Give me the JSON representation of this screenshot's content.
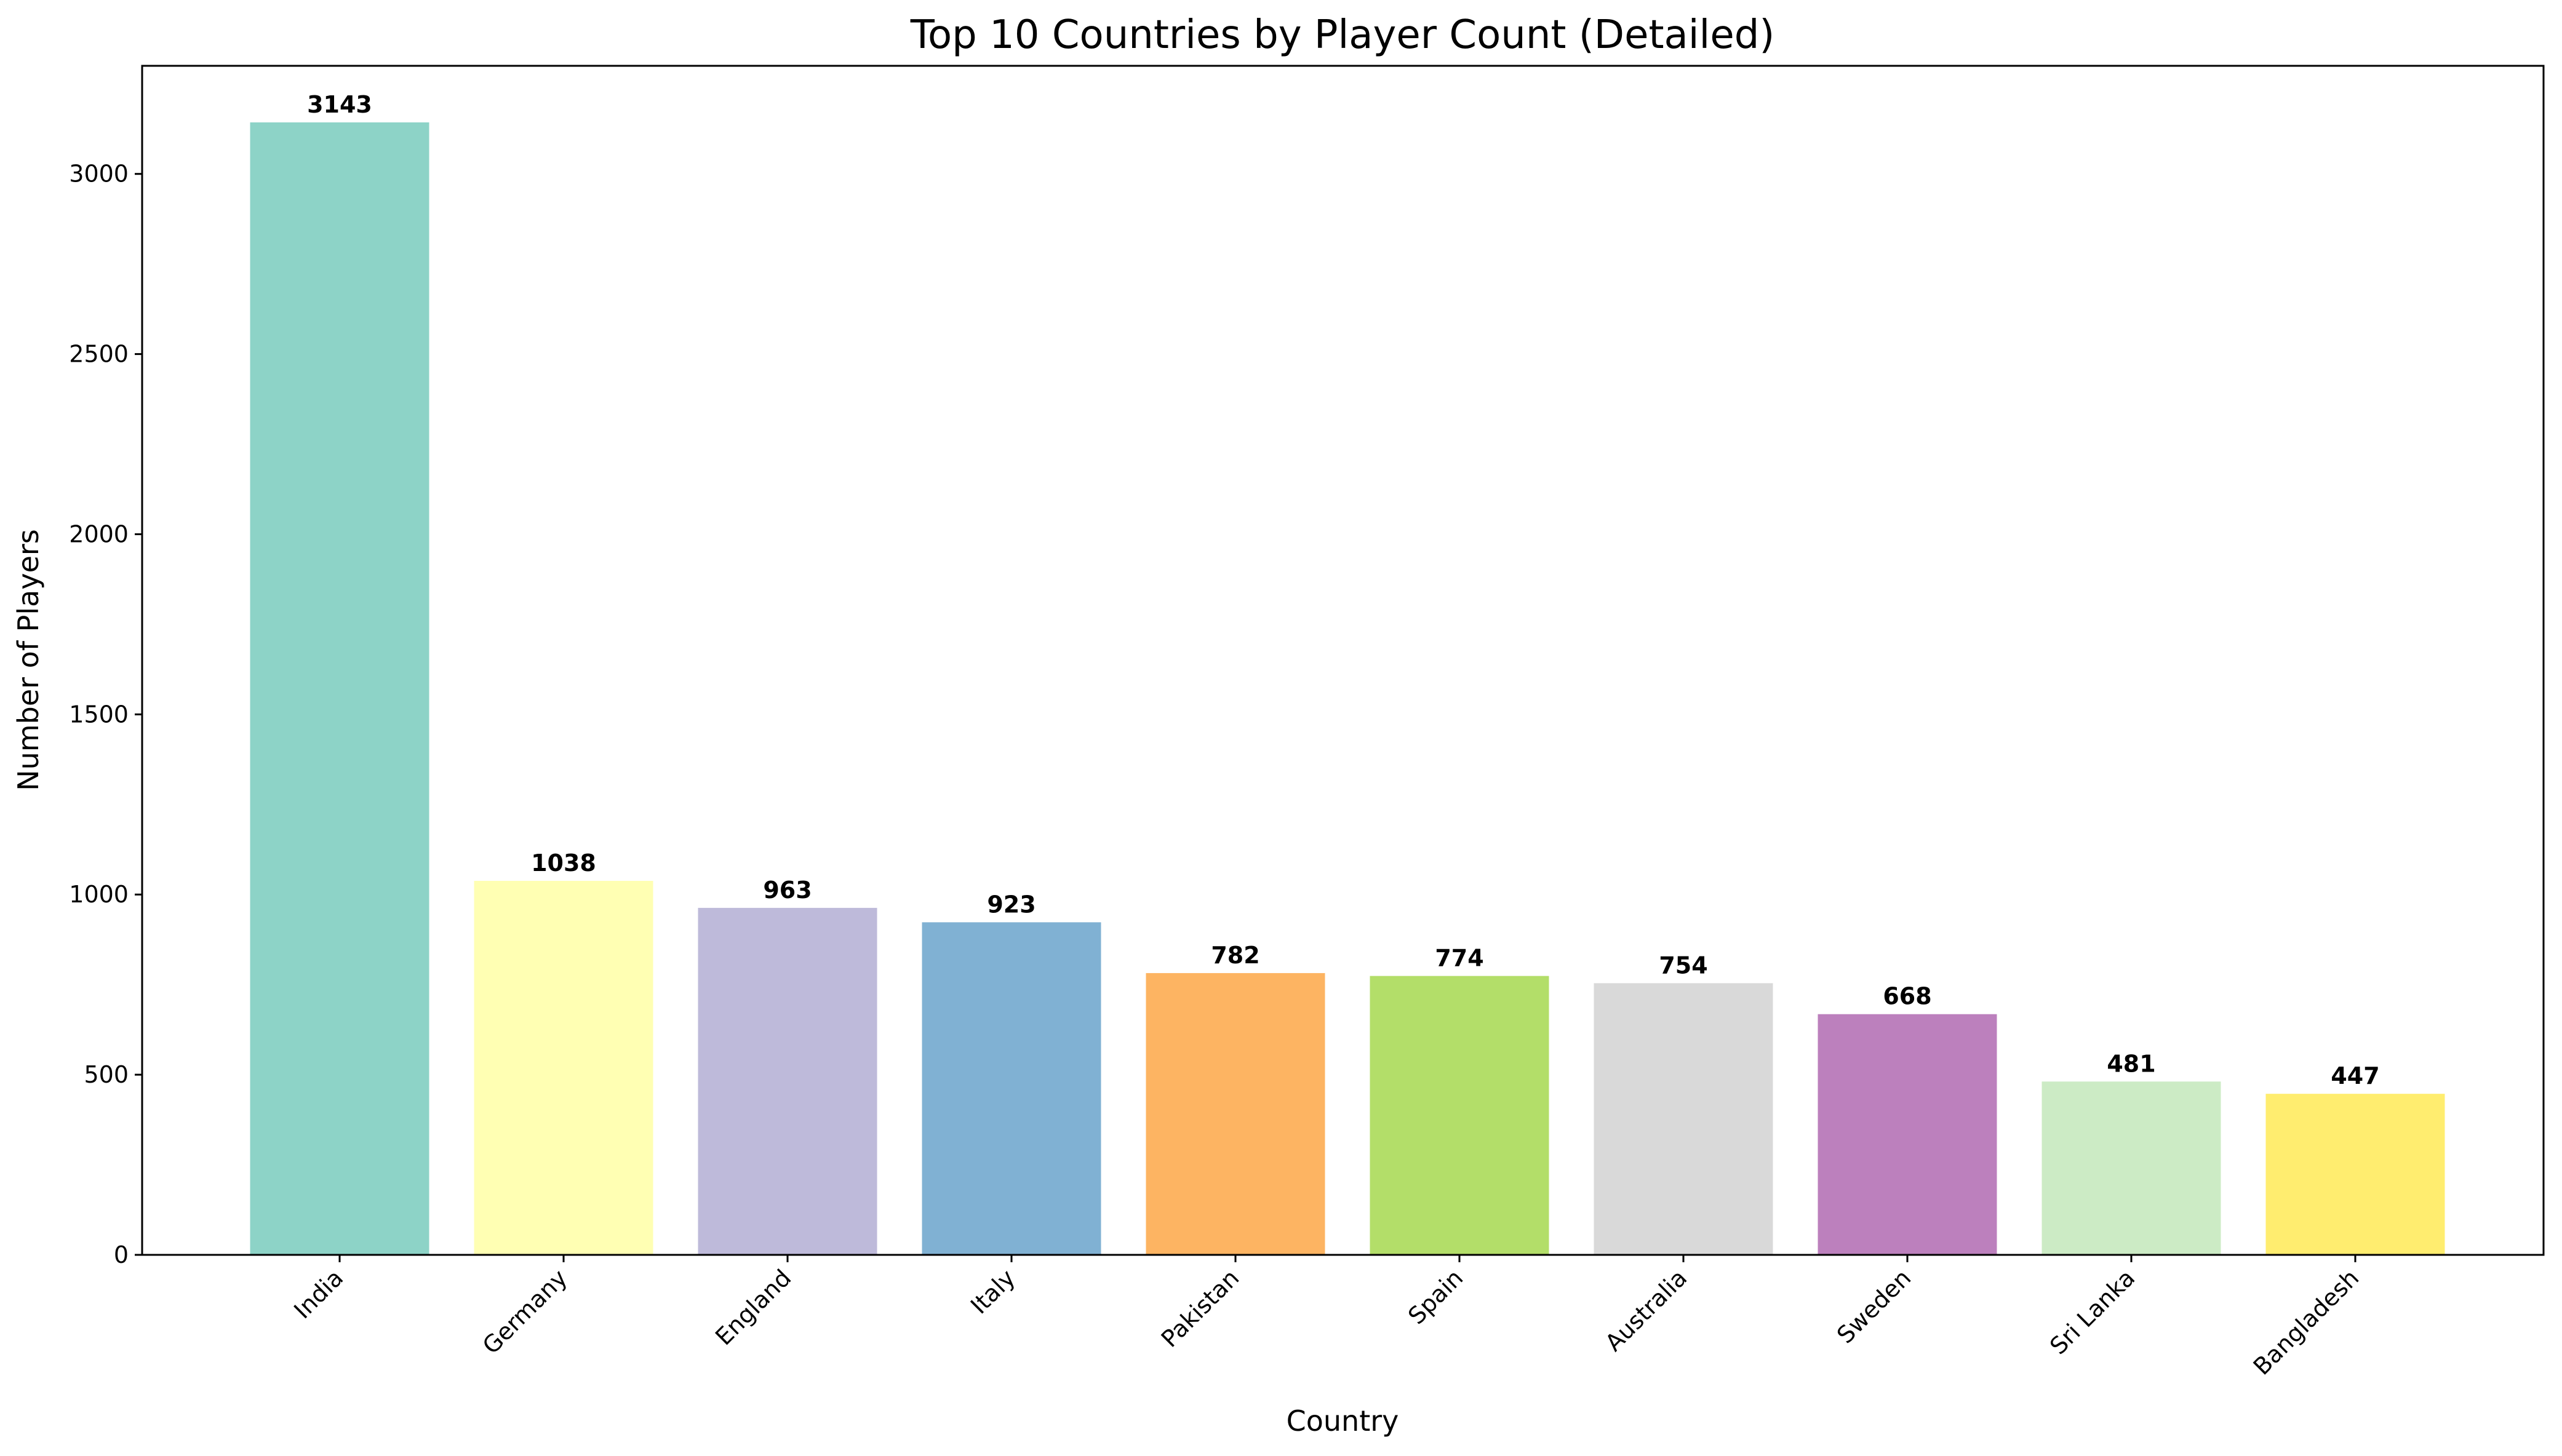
{
  "chart_data": {
    "type": "bar",
    "title": "Top 10 Countries by Player Count (Detailed)",
    "xlabel": "Country",
    "ylabel": "Number of Players",
    "categories": [
      "India",
      "Germany",
      "England",
      "Italy",
      "Pakistan",
      "Spain",
      "Australia",
      "Sweden",
      "Sri Lanka",
      "Bangladesh"
    ],
    "values": [
      3143,
      1038,
      963,
      923,
      782,
      774,
      754,
      668,
      481,
      447
    ],
    "colors": [
      "#8dd3c7",
      "#ffffb3",
      "#bebada",
      "#80b1d3",
      "#fdb462",
      "#b3de69",
      "#d9d9d9",
      "#bc80bd",
      "#ccebc5",
      "#ffed6f"
    ],
    "ylim": [
      0,
      3300
    ],
    "yticks": [
      0,
      500,
      1000,
      1500,
      2000,
      2500,
      3000
    ],
    "grid": false,
    "legend": "none"
  }
}
